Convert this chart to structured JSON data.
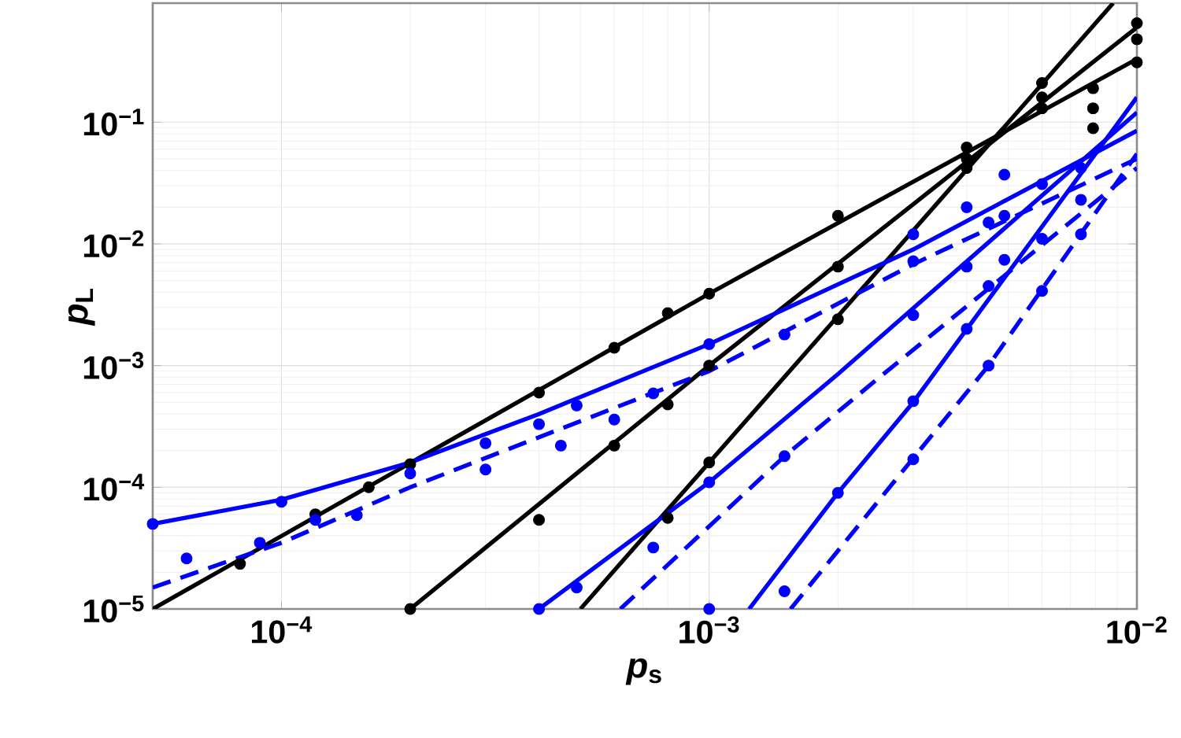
{
  "chart_data": {
    "type": "line",
    "xlabel": "*p*$_{s}$",
    "ylabel": "*p*$_{L}$",
    "log": "xy",
    "grid": true,
    "xlim": [
      5e-05,
      0.01
    ],
    "ylim": [
      1e-05,
      0.95
    ],
    "xticks": [
      {
        "value": 0.0001,
        "label": "10$^{−4}$"
      },
      {
        "value": 0.001,
        "label": "10$^{−3}$"
      },
      {
        "value": 0.01,
        "label": "10$^{−2}$"
      }
    ],
    "yticks": [
      {
        "value": 1e-05,
        "label": "10$^{−5}$"
      },
      {
        "value": 0.0001,
        "label": "10$^{−4}$"
      },
      {
        "value": 0.001,
        "label": "10$^{−3}$"
      },
      {
        "value": 0.01,
        "label": "10$^{−2}$"
      },
      {
        "value": 0.1,
        "label": "10$^{−1}$"
      }
    ],
    "series": [
      {
        "color": "#000000",
        "line_style": "solid",
        "x": [
          5e-05,
          0.001,
          0.01
        ],
        "values": [
          1e-05,
          0.0039,
          0.33
        ]
      },
      {
        "color": "#000000",
        "line_style": "solid",
        "x": [
          0.0002,
          0.001,
          0.01
        ],
        "values": [
          1e-05,
          0.001,
          0.6
        ]
      },
      {
        "color": "#000000",
        "line_style": "solid",
        "x": [
          0.0005,
          0.0088
        ],
        "values": [
          1e-05,
          0.95
        ]
      },
      {
        "color": "#0000ff",
        "line_style": "solid",
        "x": [
          5e-05,
          0.0001,
          0.0002,
          0.0004,
          0.001,
          0.003,
          0.01
        ],
        "values": [
          5e-05,
          7.9e-05,
          0.00016,
          0.0004,
          0.0015,
          0.009,
          0.085
        ]
      },
      {
        "color": "#0000ff",
        "line_style": "solid",
        "x": [
          0.0004,
          0.001,
          0.002,
          0.01
        ],
        "values": [
          1e-05,
          0.00011,
          0.00085,
          0.12
        ]
      },
      {
        "color": "#0000ff",
        "line_style": "solid",
        "x": [
          0.00124,
          0.002,
          0.003,
          0.01
        ],
        "values": [
          1e-05,
          9e-05,
          0.0005,
          0.16
        ]
      },
      {
        "color": "#0000ff",
        "line_style": "dashed",
        "x": [
          5e-05,
          0.0001,
          0.0002,
          0.001,
          0.003,
          0.01
        ],
        "values": [
          1.5e-05,
          3.5e-05,
          0.0001,
          0.0009,
          0.0068,
          0.05
        ]
      },
      {
        "color": "#0000ff",
        "line_style": "dashed",
        "x": [
          0.00062,
          0.0015,
          0.0025,
          0.01
        ],
        "values": [
          1e-05,
          0.00018,
          0.0008,
          0.042
        ]
      },
      {
        "color": "#0000ff",
        "line_style": "dashed",
        "x": [
          0.00155,
          0.0045,
          0.01
        ],
        "values": [
          1e-05,
          0.001,
          0.055
        ]
      },
      {
        "type": "scatter",
        "color": "#000000",
        "marker": "circle",
        "x": [
          8e-05,
          0.00012,
          0.00016,
          0.0002,
          0.0004,
          0.0006,
          0.0008,
          0.001,
          0.002,
          0.004,
          0.006,
          0.0079,
          0.01,
          0.0002,
          0.0004,
          0.0006,
          0.0008,
          0.001,
          0.002,
          0.004,
          0.006,
          0.0079,
          0.01,
          0.0008,
          0.001,
          0.002,
          0.004,
          0.006,
          0.0079,
          0.01
        ],
        "values": [
          2.35e-05,
          6e-05,
          0.0001,
          0.000155,
          0.0006,
          0.0014,
          0.0027,
          0.0039,
          0.017,
          0.062,
          0.13,
          0.089,
          0.31,
          1e-05,
          5.4e-05,
          0.00022,
          0.00048,
          0.001,
          0.0065,
          0.05,
          0.16,
          0.13,
          0.48,
          5.6e-05,
          0.00016,
          0.0024,
          0.042,
          0.21,
          0.19,
          0.65
        ]
      },
      {
        "type": "scatter",
        "color": "#0000ff",
        "marker": "circle",
        "x": [
          5e-05,
          6e-05,
          8.9e-05,
          0.0001,
          0.00012,
          0.00015,
          0.0002,
          0.0003,
          0.0003,
          0.0004,
          0.0004,
          0.00045,
          0.00049,
          0.00049,
          0.0006,
          0.00074,
          0.00074,
          0.001,
          0.001,
          0.001,
          0.0015,
          0.0015,
          0.0015,
          0.002,
          0.003,
          0.003,
          0.003,
          0.003,
          0.003,
          0.004,
          0.004,
          0.004,
          0.0045,
          0.0045,
          0.0045,
          0.0049,
          0.0049,
          0.0049,
          0.006,
          0.006,
          0.006,
          0.0074,
          0.0074,
          0.0074
        ],
        "values": [
          5e-05,
          2.6e-05,
          3.5e-05,
          7.6e-05,
          5.4e-05,
          5.9e-05,
          0.00013,
          0.00023,
          0.00014,
          0.00033,
          1e-05,
          0.00022,
          0.00047,
          1.5e-05,
          0.00036,
          0.00059,
          3.2e-05,
          0.00011,
          1e-05,
          0.0015,
          0.00018,
          1.4e-05,
          0.0018,
          9e-05,
          0.00051,
          0.00017,
          0.012,
          0.0072,
          0.0026,
          0.02,
          0.0065,
          0.002,
          0.015,
          0.0045,
          0.001,
          0.037,
          0.017,
          0.0074,
          0.031,
          0.011,
          0.0041,
          0.042,
          0.023,
          0.012
        ]
      }
    ]
  }
}
